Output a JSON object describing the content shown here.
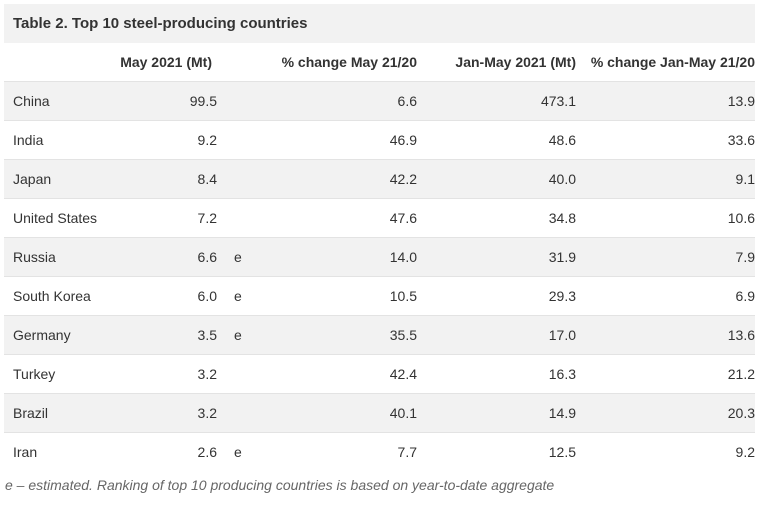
{
  "table": {
    "title": "Table 2. Top 10 steel-producing countries",
    "headers": [
      "",
      "May 2021 (Mt)",
      "",
      "% change May 21/20",
      "Jan-May 2021 (Mt)",
      "% change Jan-May 21/20"
    ],
    "rows": [
      {
        "country": "China",
        "may_2021": "99.5",
        "flag": "",
        "pct_may": "6.6",
        "jan_may_2021": "473.1",
        "pct_jan_may": "13.9"
      },
      {
        "country": "India",
        "may_2021": "9.2",
        "flag": "",
        "pct_may": "46.9",
        "jan_may_2021": "48.6",
        "pct_jan_may": "33.6"
      },
      {
        "country": "Japan",
        "may_2021": "8.4",
        "flag": "",
        "pct_may": "42.2",
        "jan_may_2021": "40.0",
        "pct_jan_may": "9.1"
      },
      {
        "country": "United States",
        "may_2021": "7.2",
        "flag": "",
        "pct_may": "47.6",
        "jan_may_2021": "34.8",
        "pct_jan_may": "10.6"
      },
      {
        "country": "Russia",
        "may_2021": "6.6",
        "flag": "e",
        "pct_may": "14.0",
        "jan_may_2021": "31.9",
        "pct_jan_may": "7.9"
      },
      {
        "country": "South Korea",
        "may_2021": "6.0",
        "flag": "e",
        "pct_may": "10.5",
        "jan_may_2021": "29.3",
        "pct_jan_may": "6.9"
      },
      {
        "country": "Germany",
        "may_2021": "3.5",
        "flag": "e",
        "pct_may": "35.5",
        "jan_may_2021": "17.0",
        "pct_jan_may": "13.6"
      },
      {
        "country": "Turkey",
        "may_2021": "3.2",
        "flag": "",
        "pct_may": "42.4",
        "jan_may_2021": "16.3",
        "pct_jan_may": "21.2"
      },
      {
        "country": "Brazil",
        "may_2021": "3.2",
        "flag": "",
        "pct_may": "40.1",
        "jan_may_2021": "14.9",
        "pct_jan_may": "20.3"
      },
      {
        "country": "Iran",
        "may_2021": "2.6",
        "flag": "e",
        "pct_may": "7.7",
        "jan_may_2021": "12.5",
        "pct_jan_may": "9.2"
      }
    ]
  },
  "footnote": "e – estimated. Ranking of top 10 producing countries is based on year-to-date aggregate"
}
